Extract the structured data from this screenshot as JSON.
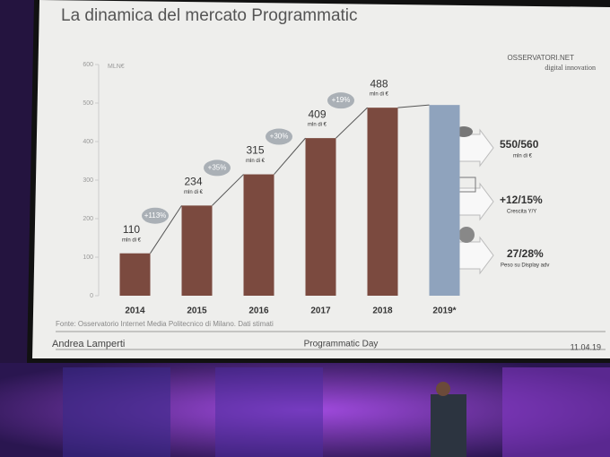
{
  "chart_data": {
    "type": "bar",
    "title": "La dinamica del mercato Programmatic",
    "y_axis_label": "MLN€",
    "categories": [
      "2014",
      "2015",
      "2016",
      "2017",
      "2018",
      "2019*"
    ],
    "values": [
      110,
      234,
      315,
      409,
      488,
      495
    ],
    "colors": [
      "#7b4a3f",
      "#7b4a3f",
      "#7b4a3f",
      "#7b4a3f",
      "#7b4a3f",
      "#8fa3bd"
    ],
    "value_unit": "mln di €",
    "growth_labels": [
      "+113%",
      "+35%",
      "+30%",
      "+19%"
    ],
    "ylim": [
      0,
      600
    ],
    "yticks": [
      0,
      100,
      200,
      300,
      400,
      500,
      600
    ],
    "source": "Fonte: Osservatorio Internet Media Politecnico di Milano. Dati stimati"
  },
  "side_notes": [
    {
      "value": "550/560",
      "caption": "mln di €"
    },
    {
      "value": "+12/15%",
      "caption": "Crescita Y/Y"
    },
    {
      "value": "27/28%",
      "caption": "Peso su Display adv"
    }
  ],
  "logo": {
    "name": "OSSERVATORI.NET",
    "tagline": "digital innovation"
  },
  "footer": {
    "speaker": "Andrea Lamperti",
    "event": "Programmatic Day",
    "date": "11.04.19"
  }
}
